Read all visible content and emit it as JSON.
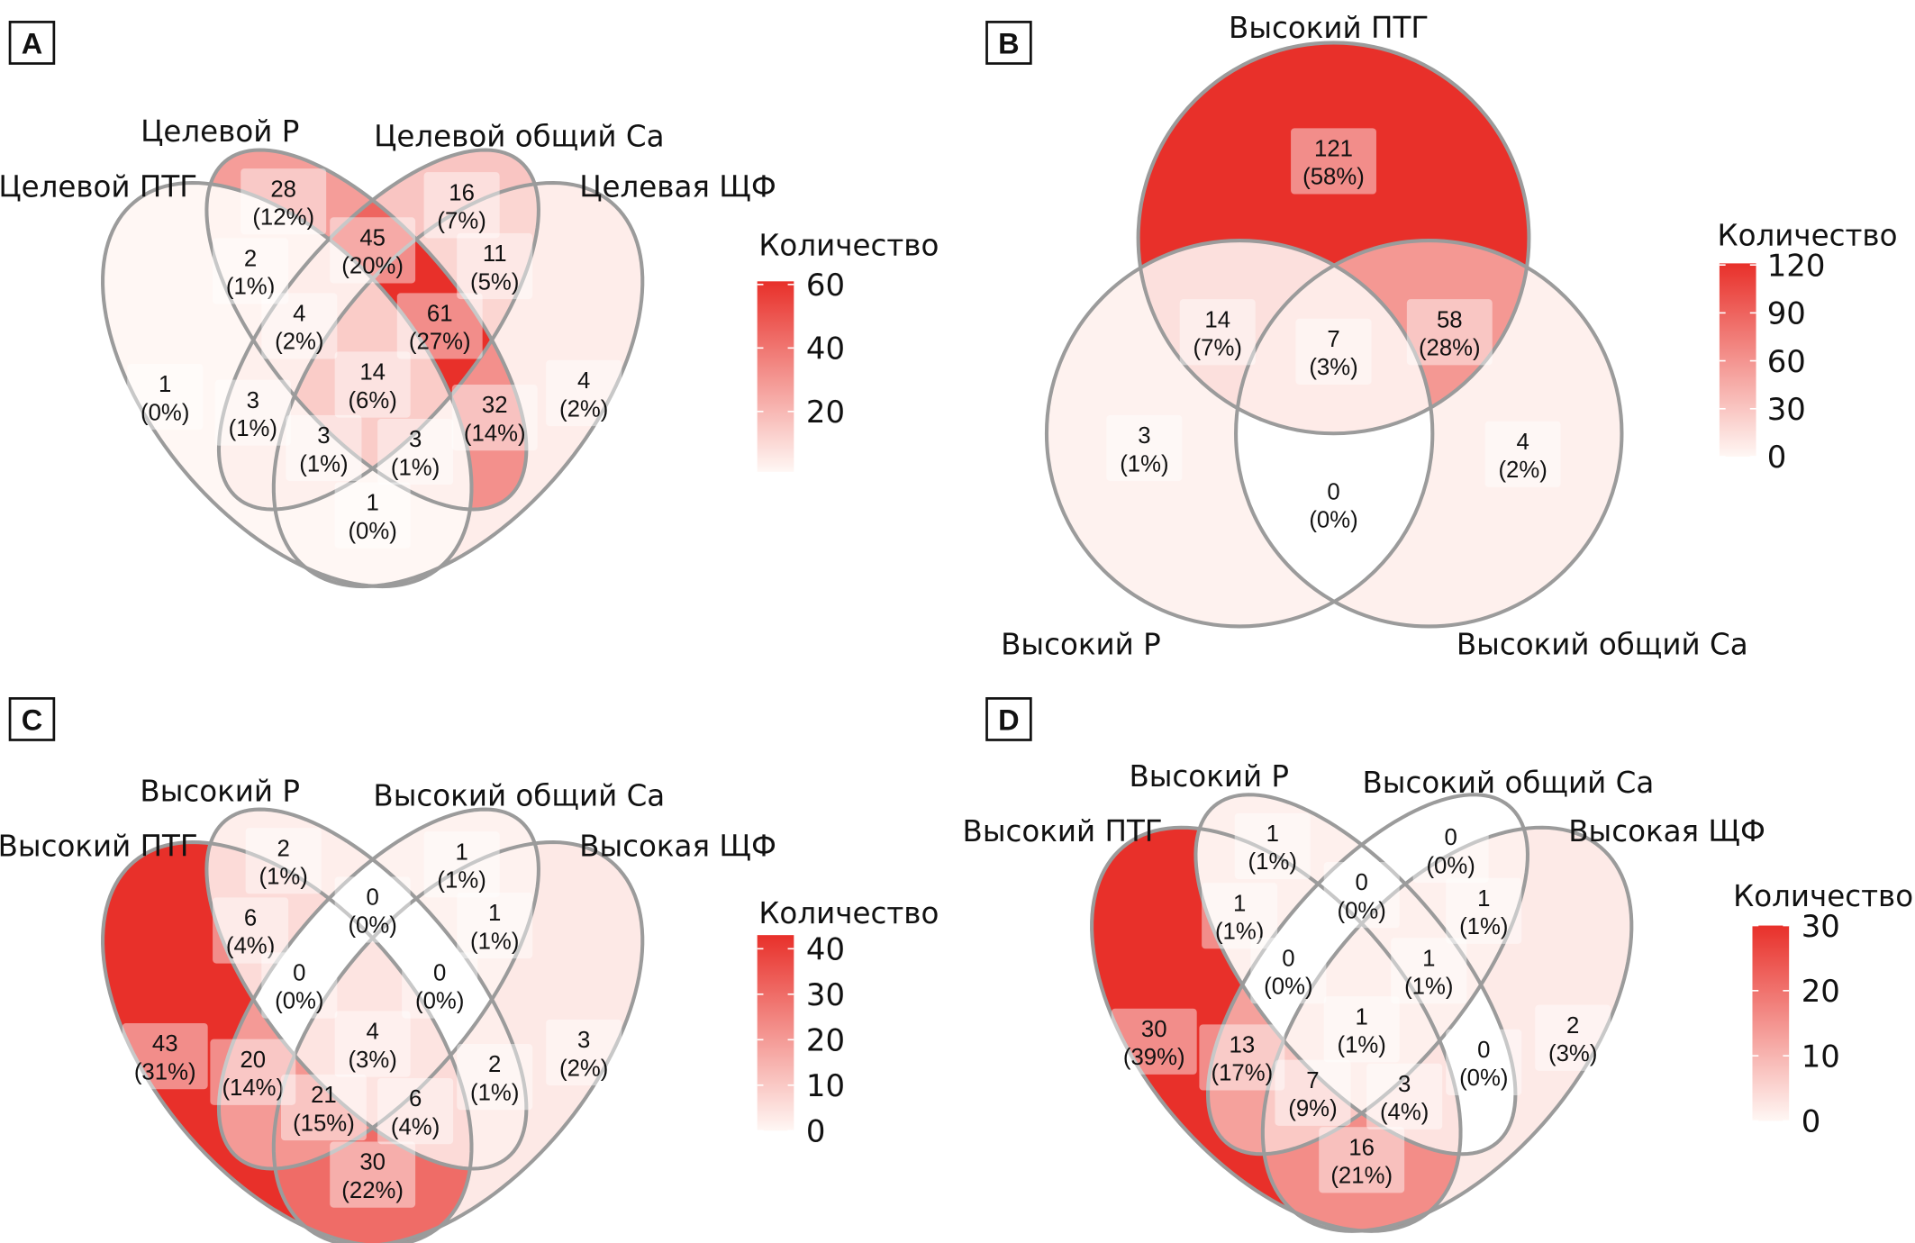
{
  "chart_data": [
    {
      "panel": "A",
      "type": "venn",
      "sets": [
        "Целевой ПТГ",
        "Целевой Р",
        "Целевой общий Ca",
        "Целевая ЩФ"
      ],
      "regions": [
        {
          "in": [
            0
          ],
          "count": 1,
          "pct": "(0%)"
        },
        {
          "in": [
            1
          ],
          "count": 28,
          "pct": "(12%)"
        },
        {
          "in": [
            2
          ],
          "count": 16,
          "pct": "(7%)"
        },
        {
          "in": [
            3
          ],
          "count": 4,
          "pct": "(2%)"
        },
        {
          "in": [
            0,
            1
          ],
          "count": 2,
          "pct": "(1%)"
        },
        {
          "in": [
            1,
            2
          ],
          "count": 45,
          "pct": "(20%)"
        },
        {
          "in": [
            2,
            3
          ],
          "count": 11,
          "pct": "(5%)"
        },
        {
          "in": [
            0,
            1,
            2
          ],
          "count": 4,
          "pct": "(2%)"
        },
        {
          "in": [
            1,
            2,
            3
          ],
          "count": 61,
          "pct": "(27%)"
        },
        {
          "in": [
            0,
            1,
            2,
            3
          ],
          "count": 14,
          "pct": "(6%)"
        },
        {
          "in": [
            1,
            3
          ],
          "count": 32,
          "pct": "(14%)"
        },
        {
          "in": [
            0,
            2
          ],
          "count": 3,
          "pct": "(1%)"
        },
        {
          "in": [
            0,
            2,
            3
          ],
          "count": 3,
          "pct": "(1%)"
        },
        {
          "in": [
            0,
            1,
            3
          ],
          "count": 3,
          "pct": "(1%)"
        },
        {
          "in": [
            0,
            3
          ],
          "count": 1,
          "pct": "(0%)"
        }
      ],
      "legend": {
        "title": "Количество",
        "ticks": [
          20,
          40,
          60
        ],
        "range": [
          1,
          61
        ],
        "low_color": "#fff7f4",
        "high_color": "#e8302a"
      }
    },
    {
      "panel": "B",
      "type": "venn",
      "sets": [
        "Высокий ПТГ",
        "Высокий Р",
        "Высокий общий Ca"
      ],
      "regions": [
        {
          "in": [
            0
          ],
          "count": 121,
          "pct": "(58%)"
        },
        {
          "in": [
            0,
            1
          ],
          "count": 14,
          "pct": "(7%)"
        },
        {
          "in": [
            0,
            1,
            2
          ],
          "count": 7,
          "pct": "(3%)"
        },
        {
          "in": [
            0,
            2
          ],
          "count": 58,
          "pct": "(28%)"
        },
        {
          "in": [
            1
          ],
          "count": 3,
          "pct": "(1%)"
        },
        {
          "in": [
            1,
            2
          ],
          "count": 0,
          "pct": "(0%)"
        },
        {
          "in": [
            2
          ],
          "count": 4,
          "pct": "(2%)"
        }
      ],
      "legend": {
        "title": "Количество",
        "ticks": [
          0,
          30,
          60,
          90,
          120
        ],
        "range": [
          0,
          121
        ],
        "low_color": "#fff7f4",
        "high_color": "#e8302a"
      }
    },
    {
      "panel": "C",
      "type": "venn",
      "sets": [
        "Высокий ПТГ",
        "Высокий Р",
        "Высокий общий Ca",
        "Высокая ЩФ"
      ],
      "regions": [
        {
          "in": [
            0
          ],
          "count": 43,
          "pct": "(31%)"
        },
        {
          "in": [
            1
          ],
          "count": 2,
          "pct": "(1%)"
        },
        {
          "in": [
            2
          ],
          "count": 1,
          "pct": "(1%)"
        },
        {
          "in": [
            3
          ],
          "count": 3,
          "pct": "(2%)"
        },
        {
          "in": [
            0,
            1
          ],
          "count": 6,
          "pct": "(4%)"
        },
        {
          "in": [
            1,
            2
          ],
          "count": 0,
          "pct": "(0%)"
        },
        {
          "in": [
            2,
            3
          ],
          "count": 1,
          "pct": "(1%)"
        },
        {
          "in": [
            0,
            1,
            2
          ],
          "count": 0,
          "pct": "(0%)"
        },
        {
          "in": [
            1,
            2,
            3
          ],
          "count": 0,
          "pct": "(0%)"
        },
        {
          "in": [
            0,
            1,
            2,
            3
          ],
          "count": 4,
          "pct": "(3%)"
        },
        {
          "in": [
            1,
            3
          ],
          "count": 2,
          "pct": "(1%)"
        },
        {
          "in": [
            0,
            2
          ],
          "count": 20,
          "pct": "(14%)"
        },
        {
          "in": [
            0,
            2,
            3
          ],
          "count": 21,
          "pct": "(15%)"
        },
        {
          "in": [
            0,
            1,
            3
          ],
          "count": 6,
          "pct": "(4%)"
        },
        {
          "in": [
            0,
            3
          ],
          "count": 30,
          "pct": "(22%)"
        }
      ],
      "legend": {
        "title": "Количество",
        "ticks": [
          0,
          10,
          20,
          30,
          40
        ],
        "range": [
          0,
          43
        ],
        "low_color": "#fff7f4",
        "high_color": "#e8302a"
      }
    },
    {
      "panel": "D",
      "type": "venn",
      "sets": [
        "Высокий ПТГ",
        "Высокий Р",
        "Высокий общий Ca",
        "Высокая ЩФ"
      ],
      "regions": [
        {
          "in": [
            0
          ],
          "count": 30,
          "pct": "(39%)"
        },
        {
          "in": [
            1
          ],
          "count": 1,
          "pct": "(1%)"
        },
        {
          "in": [
            2
          ],
          "count": 0,
          "pct": "(0%)"
        },
        {
          "in": [
            3
          ],
          "count": 2,
          "pct": "(3%)"
        },
        {
          "in": [
            0,
            1
          ],
          "count": 1,
          "pct": "(1%)"
        },
        {
          "in": [
            1,
            2
          ],
          "count": 0,
          "pct": "(0%)"
        },
        {
          "in": [
            2,
            3
          ],
          "count": 1,
          "pct": "(1%)"
        },
        {
          "in": [
            0,
            1,
            2
          ],
          "count": 0,
          "pct": "(0%)"
        },
        {
          "in": [
            1,
            2,
            3
          ],
          "count": 1,
          "pct": "(1%)"
        },
        {
          "in": [
            0,
            1,
            2,
            3
          ],
          "count": 1,
          "pct": "(1%)"
        },
        {
          "in": [
            1,
            3
          ],
          "count": 0,
          "pct": "(0%)"
        },
        {
          "in": [
            0,
            2
          ],
          "count": 13,
          "pct": "(17%)"
        },
        {
          "in": [
            0,
            2,
            3
          ],
          "count": 7,
          "pct": "(9%)"
        },
        {
          "in": [
            0,
            1,
            3
          ],
          "count": 3,
          "pct": "(4%)"
        },
        {
          "in": [
            0,
            3
          ],
          "count": 16,
          "pct": "(21%)"
        }
      ],
      "legend": {
        "title": "Количество",
        "ticks": [
          0,
          10,
          20,
          30
        ],
        "range": [
          0,
          30
        ],
        "low_color": "#fff7f4",
        "high_color": "#e8302a"
      }
    }
  ],
  "outline_color": "#9b9b9b"
}
